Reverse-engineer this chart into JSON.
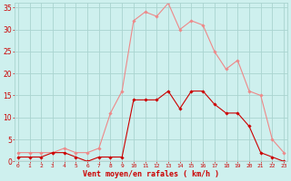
{
  "hours": [
    0,
    1,
    2,
    3,
    4,
    5,
    6,
    7,
    8,
    9,
    10,
    11,
    12,
    13,
    14,
    15,
    16,
    17,
    18,
    19,
    20,
    21,
    22,
    23
  ],
  "mean_wind": [
    1,
    1,
    1,
    2,
    2,
    1,
    0,
    1,
    1,
    1,
    14,
    14,
    14,
    16,
    12,
    16,
    16,
    13,
    11,
    11,
    8,
    2,
    1,
    0
  ],
  "gust_wind": [
    2,
    2,
    2,
    2,
    3,
    2,
    2,
    3,
    11,
    16,
    32,
    34,
    33,
    36,
    30,
    32,
    31,
    25,
    21,
    23,
    16,
    15,
    5,
    2
  ],
  "bg_color": "#cef0ee",
  "grid_color": "#aad4d0",
  "mean_color": "#cc0000",
  "gust_color": "#ee8888",
  "xlabel": "Vent moyen/en rafales ( km/h )",
  "ylim": [
    0,
    36
  ],
  "yticks": [
    0,
    5,
    10,
    15,
    20,
    25,
    30,
    35
  ],
  "xlim": [
    -0.3,
    23.3
  ]
}
